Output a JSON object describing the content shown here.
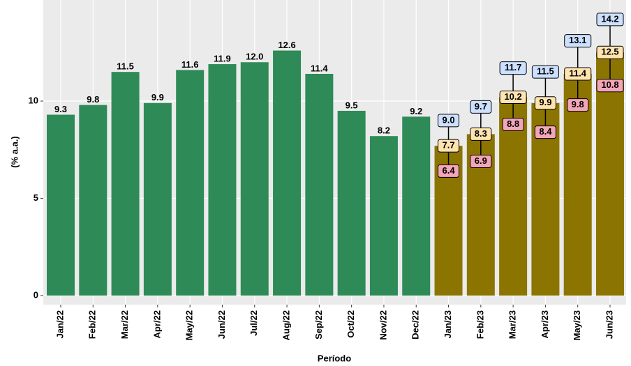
{
  "chart_data": {
    "type": "bar",
    "y_label": "(% a.a.)",
    "x_label": "Período",
    "categories": [
      "Jan/22",
      "Feb/22",
      "Mar/22",
      "Apr/22",
      "May/22",
      "Jun/22",
      "Jul/22",
      "Aug/22",
      "Sep/22",
      "Oct/22",
      "Nov/22",
      "Dec/22",
      "Jan/23",
      "Feb/23",
      "Mar/23",
      "Apr/23",
      "May/23",
      "Jun/23"
    ],
    "series": [
      {
        "color": "#2e8b57",
        "values": [
          9.3,
          9.8,
          11.5,
          9.9,
          11.6,
          11.9,
          12.0,
          12.6,
          11.4,
          9.5,
          8.2,
          9.2,
          null,
          null,
          null,
          null,
          null,
          null
        ],
        "value_labels": [
          "9.3",
          "9.8",
          "11.5",
          "9.9",
          "11.6",
          "11.9",
          "12.0",
          "12.6",
          "11.4",
          "9.5",
          "8.2",
          "9.2",
          null,
          null,
          null,
          null,
          null,
          null
        ]
      },
      {
        "color": "#8b7500",
        "label_color": "#ffe4b0",
        "values": [
          null,
          null,
          null,
          null,
          null,
          null,
          null,
          null,
          null,
          null,
          null,
          null,
          7.7,
          8.3,
          10.2,
          9.9,
          11.4,
          12.5
        ],
        "value_labels": [
          null,
          null,
          null,
          null,
          null,
          null,
          null,
          null,
          null,
          null,
          null,
          null,
          "7.7",
          "8.3",
          "10.2",
          "9.9",
          "11.4",
          "12.5"
        ],
        "lower": [
          null,
          null,
          null,
          null,
          null,
          null,
          null,
          null,
          null,
          null,
          null,
          null,
          6.4,
          6.9,
          8.8,
          8.4,
          9.8,
          10.8
        ],
        "lower_labels": [
          null,
          null,
          null,
          null,
          null,
          null,
          null,
          null,
          null,
          null,
          null,
          null,
          "6.4",
          "6.9",
          "8.8",
          "8.4",
          "9.8",
          "10.8"
        ],
        "lower_color": "#f4a6b8",
        "upper": [
          null,
          null,
          null,
          null,
          null,
          null,
          null,
          null,
          null,
          null,
          null,
          null,
          9.0,
          9.7,
          11.7,
          11.5,
          13.1,
          14.2
        ],
        "upper_labels": [
          null,
          null,
          null,
          null,
          null,
          null,
          null,
          null,
          null,
          null,
          null,
          null,
          "9.0",
          "9.7",
          "11.7",
          "11.5",
          "13.1",
          "14.2"
        ],
        "upper_color": "#cce0ff"
      }
    ],
    "ylim": [
      -0.47,
      15.2
    ],
    "yticks": [
      0,
      5,
      10
    ],
    "grid": true
  }
}
